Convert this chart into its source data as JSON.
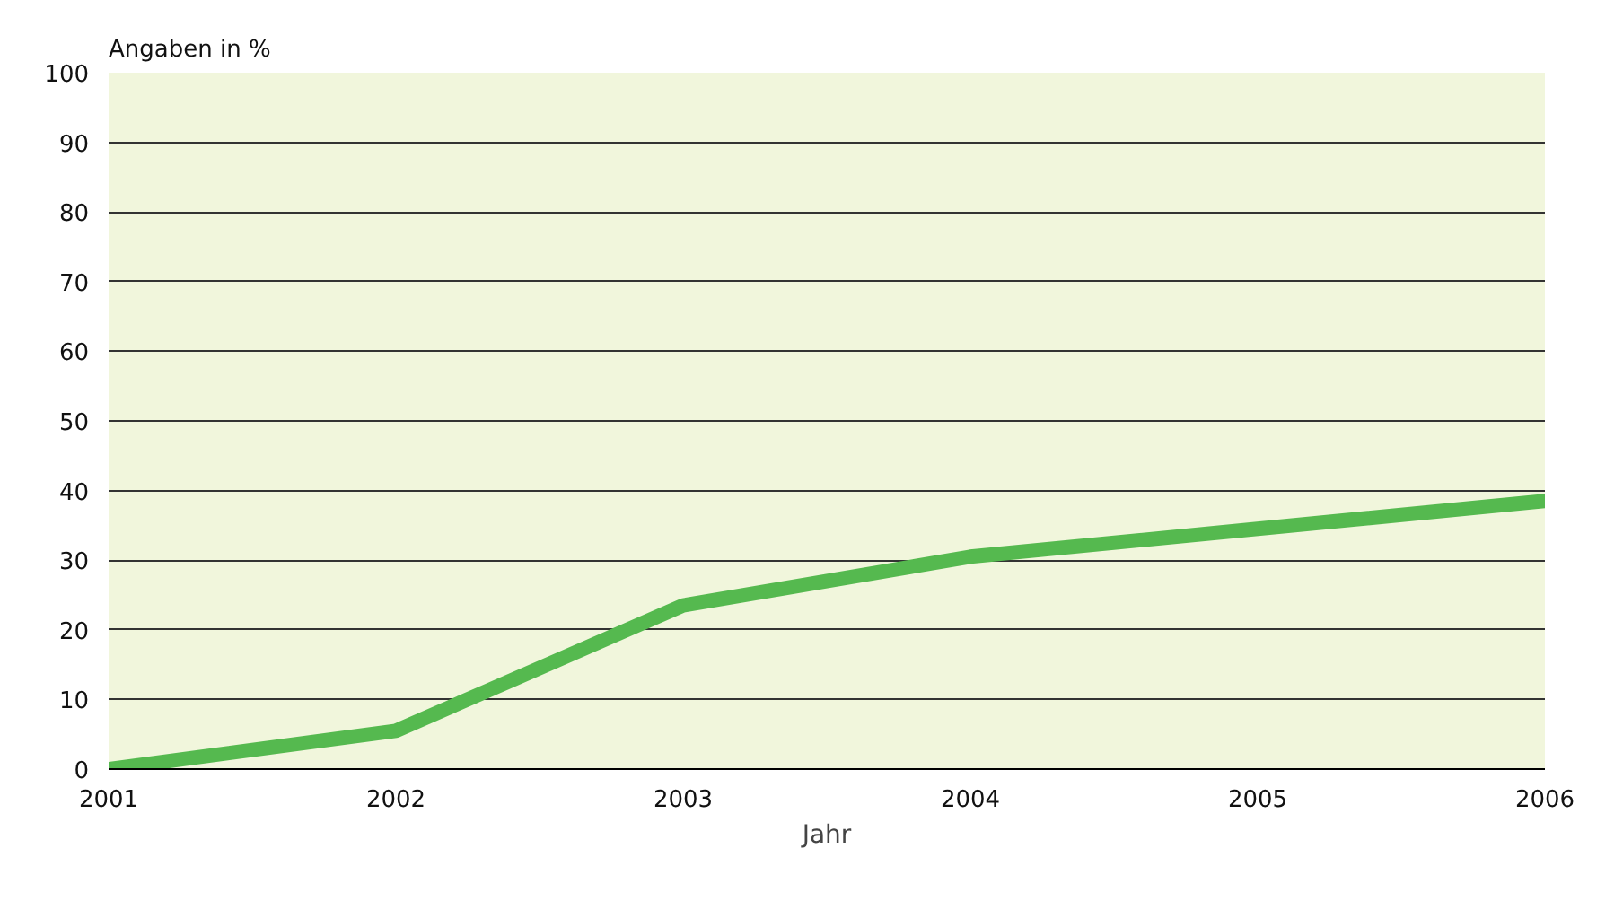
{
  "chart_data": {
    "type": "line",
    "ylabel": "Angaben in %",
    "xlabel": "Jahr",
    "x": [
      2001,
      2002,
      2003,
      2004,
      2005,
      2006
    ],
    "series": [
      {
        "color": "#55b94f",
        "values": [
          0,
          5.5,
          23.5,
          30.5,
          34.5,
          38.5
        ]
      }
    ],
    "xlim": [
      2001,
      2006
    ],
    "xticks": [
      2001,
      2002,
      2003,
      2004,
      2005,
      2006
    ],
    "ylim": [
      0,
      100
    ],
    "yticks": [
      0,
      10,
      20,
      30,
      40,
      50,
      60,
      70,
      80,
      90,
      100
    ],
    "grid": "y",
    "marker": "none",
    "line_style": "solid"
  }
}
